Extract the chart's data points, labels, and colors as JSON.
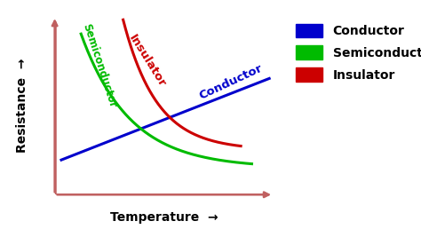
{
  "xlabel": "Temperature",
  "ylabel": "Resistance",
  "conductor_color": "#0000cc",
  "semiconductor_color": "#00bb00",
  "insulator_color": "#cc0000",
  "axis_color": "#c06060",
  "legend_labels": [
    "Conductor",
    "Semiconductor",
    "Insulator"
  ],
  "legend_colors": [
    "#0000cc",
    "#00bb00",
    "#cc0000"
  ],
  "background_color": "#ffffff",
  "label_fontsize": 10,
  "legend_fontsize": 10,
  "curve_label_fontsize": 9.5
}
